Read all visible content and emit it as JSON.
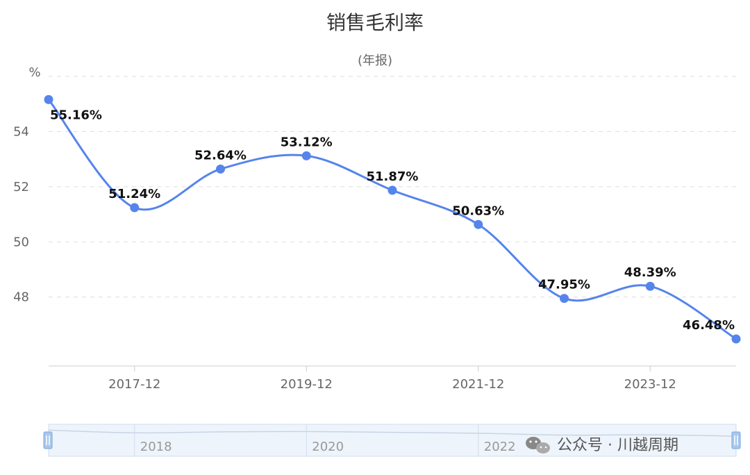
{
  "chart_data": {
    "type": "line",
    "title": "销售毛利率",
    "subtitle": "(年报)",
    "y_unit": "%",
    "y_ticks": [
      "48",
      "50",
      "52",
      "54"
    ],
    "ylim": [
      45.5,
      56
    ],
    "x": [
      "2016-12",
      "2017-12",
      "2018-12",
      "2019-12",
      "2020-12",
      "2021-12",
      "2022-12",
      "2023-12",
      "2024-12"
    ],
    "x_tick_labels": [
      "2017-12",
      "2019-12",
      "2021-12",
      "2023-12"
    ],
    "series": [
      {
        "values": [
          55.16,
          51.24,
          52.64,
          53.12,
          51.87,
          50.63,
          47.95,
          48.39,
          46.48
        ],
        "data_labels": [
          "55.16%",
          "51.24%",
          "52.64%",
          "53.12%",
          "51.87%",
          "50.63%",
          "47.95%",
          "48.39%",
          "46.48%"
        ],
        "color": "#5584ec"
      }
    ],
    "grid": true
  },
  "navigator": {
    "labels": [
      "2018",
      "2020",
      "2022"
    ]
  },
  "watermark": {
    "text": "公众号 · 川越周期",
    "icon": "wechat-icon"
  }
}
